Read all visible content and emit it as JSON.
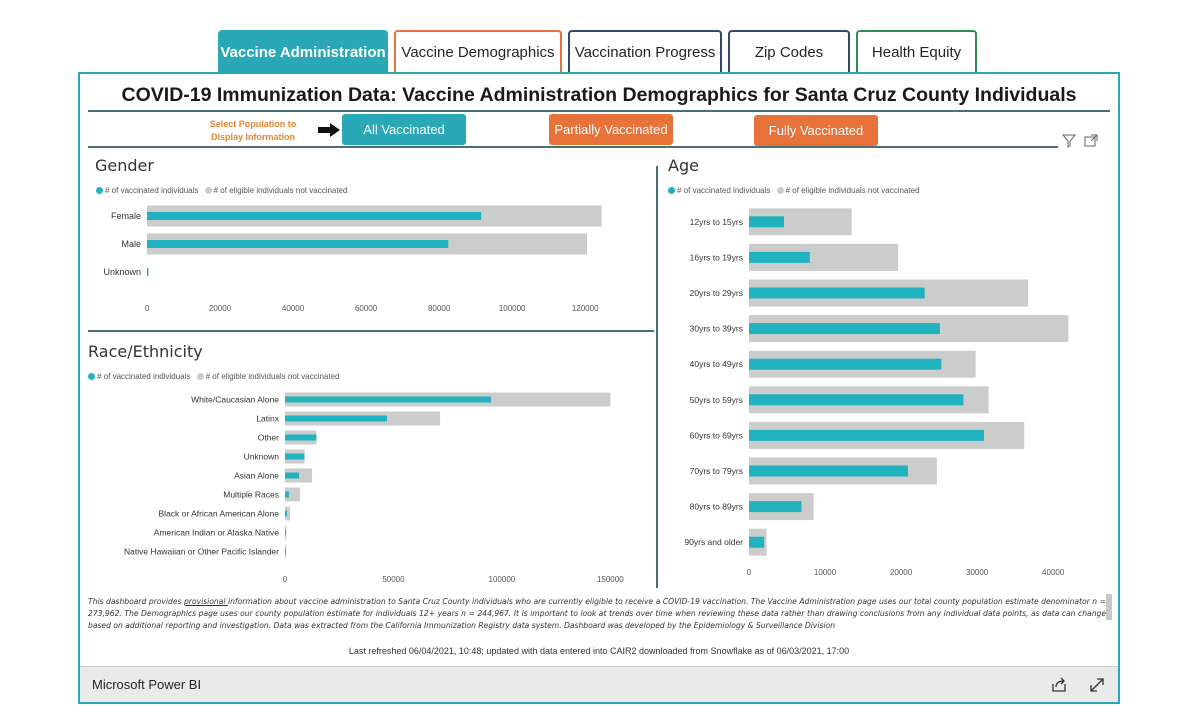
{
  "tabs": [
    {
      "label": "Vaccine Administration",
      "active": true,
      "border": "#2aa8b6"
    },
    {
      "label": "Vaccine Demographics",
      "active": false,
      "border": "#e8733a"
    },
    {
      "label": "Vaccination Progress",
      "active": false,
      "border": "#2e4a6b"
    },
    {
      "label": "Zip Codes",
      "active": false,
      "border": "#2e4a6b"
    },
    {
      "label": "Health Equity",
      "active": false,
      "border": "#2e8b57"
    }
  ],
  "report": {
    "title": "COVID-19 Immunization Data: Vaccine Administration Demographics for Santa Cruz County Individuals",
    "select_label": "Select Population to Display Information",
    "buttons": {
      "all": "All Vaccinated",
      "partial": "Partially Vaccinated",
      "fully": "Fully Vaccinated"
    }
  },
  "legend": {
    "vaccinated": "# of vaccinated individuals",
    "not_vaccinated": "# of eligible individuals not vaccinated"
  },
  "colors": {
    "teal": "#20b2bf",
    "gray": "#cccccc",
    "orange": "#e8733a",
    "active_tab": "#2aa8b6"
  },
  "chart_data": [
    {
      "id": "gender",
      "type": "bar",
      "orientation": "horizontal",
      "title": "Gender",
      "categories": [
        "Female",
        "Male",
        "Unknown"
      ],
      "series": [
        {
          "name": "# of vaccinated individuals",
          "values": [
            91500,
            82500,
            400
          ]
        },
        {
          "name": "# of eligible individuals not vaccinated",
          "values": [
            124500,
            120500,
            0
          ]
        }
      ],
      "ticks": [
        0,
        20000,
        40000,
        60000,
        80000,
        100000,
        120000
      ],
      "xlim": [
        0,
        132000
      ]
    },
    {
      "id": "race",
      "type": "bar",
      "orientation": "horizontal",
      "title": "Race/Ethnicity",
      "categories": [
        "White/Caucasian Alone",
        "Latinx",
        "Other",
        "Unknown",
        "Asian Alone",
        "Multiple Races",
        "Black or African American Alone",
        "American Indian or Alaska Native",
        "Native Hawaiian or Other Pacific Islander"
      ],
      "series": [
        {
          "name": "# of vaccinated individuals",
          "values": [
            95000,
            47000,
            14500,
            9000,
            6500,
            1800,
            900,
            400,
            300
          ]
        },
        {
          "name": "# of eligible individuals not vaccinated",
          "values": [
            150000,
            71500,
            14500,
            9000,
            12500,
            7000,
            2300,
            600,
            500
          ]
        }
      ],
      "ticks": [
        0,
        50000,
        100000,
        150000
      ],
      "xlim": [
        0,
        160000
      ]
    },
    {
      "id": "age",
      "type": "bar",
      "orientation": "horizontal",
      "title": "Age",
      "categories": [
        "12yrs to 15yrs",
        "16yrs to 19yrs",
        "20yrs to 29yrs",
        "30yrs to 39yrs",
        "40yrs to 49yrs",
        "50yrs to 59yrs",
        "60yrs to 69yrs",
        "70yrs to 79yrs",
        "80yrs to 89yrs",
        "90yrs and older"
      ],
      "series": [
        {
          "name": "# of vaccinated individuals",
          "values": [
            4600,
            8000,
            23100,
            25100,
            25300,
            28200,
            30900,
            20900,
            6900,
            2000
          ]
        },
        {
          "name": "# of eligible individuals not vaccinated",
          "values": [
            13500,
            19600,
            36700,
            42000,
            29800,
            31500,
            36200,
            24700,
            8500,
            2300
          ]
        }
      ],
      "ticks": [
        0,
        10000,
        20000,
        30000,
        40000
      ],
      "xlim": [
        0,
        43000
      ]
    }
  ],
  "footnote": {
    "part1": "This dashboard provides ",
    "underlined": "provisional ",
    "part2": "information about vaccine administration to Santa Cruz County individuals who are currently eligible to receive a COVID-19 vaccination. The Vaccine Administration page uses our total county population estimate denominator n = 273,962. The Demographics page uses our county population estimate for individuals 12+ years n = 244,967. It is important to look at trends over time when reviewing these data rather than drawing conclusions from any individual data points, as data can change based on additional reporting and investigation.  Data was extracted from the California Immunization Registry data system. Dashboard was developed by the Epidemiology & Surveillance Division"
  },
  "refreshed": "Last refreshed 06/04/2021, 10:48; updated with data entered into CAIR2 downloaded from Snowflake as of 06/03/2021, 17:00",
  "footer": {
    "brand": "Microsoft Power BI",
    "icons": [
      "share-icon",
      "fullscreen-icon"
    ]
  }
}
